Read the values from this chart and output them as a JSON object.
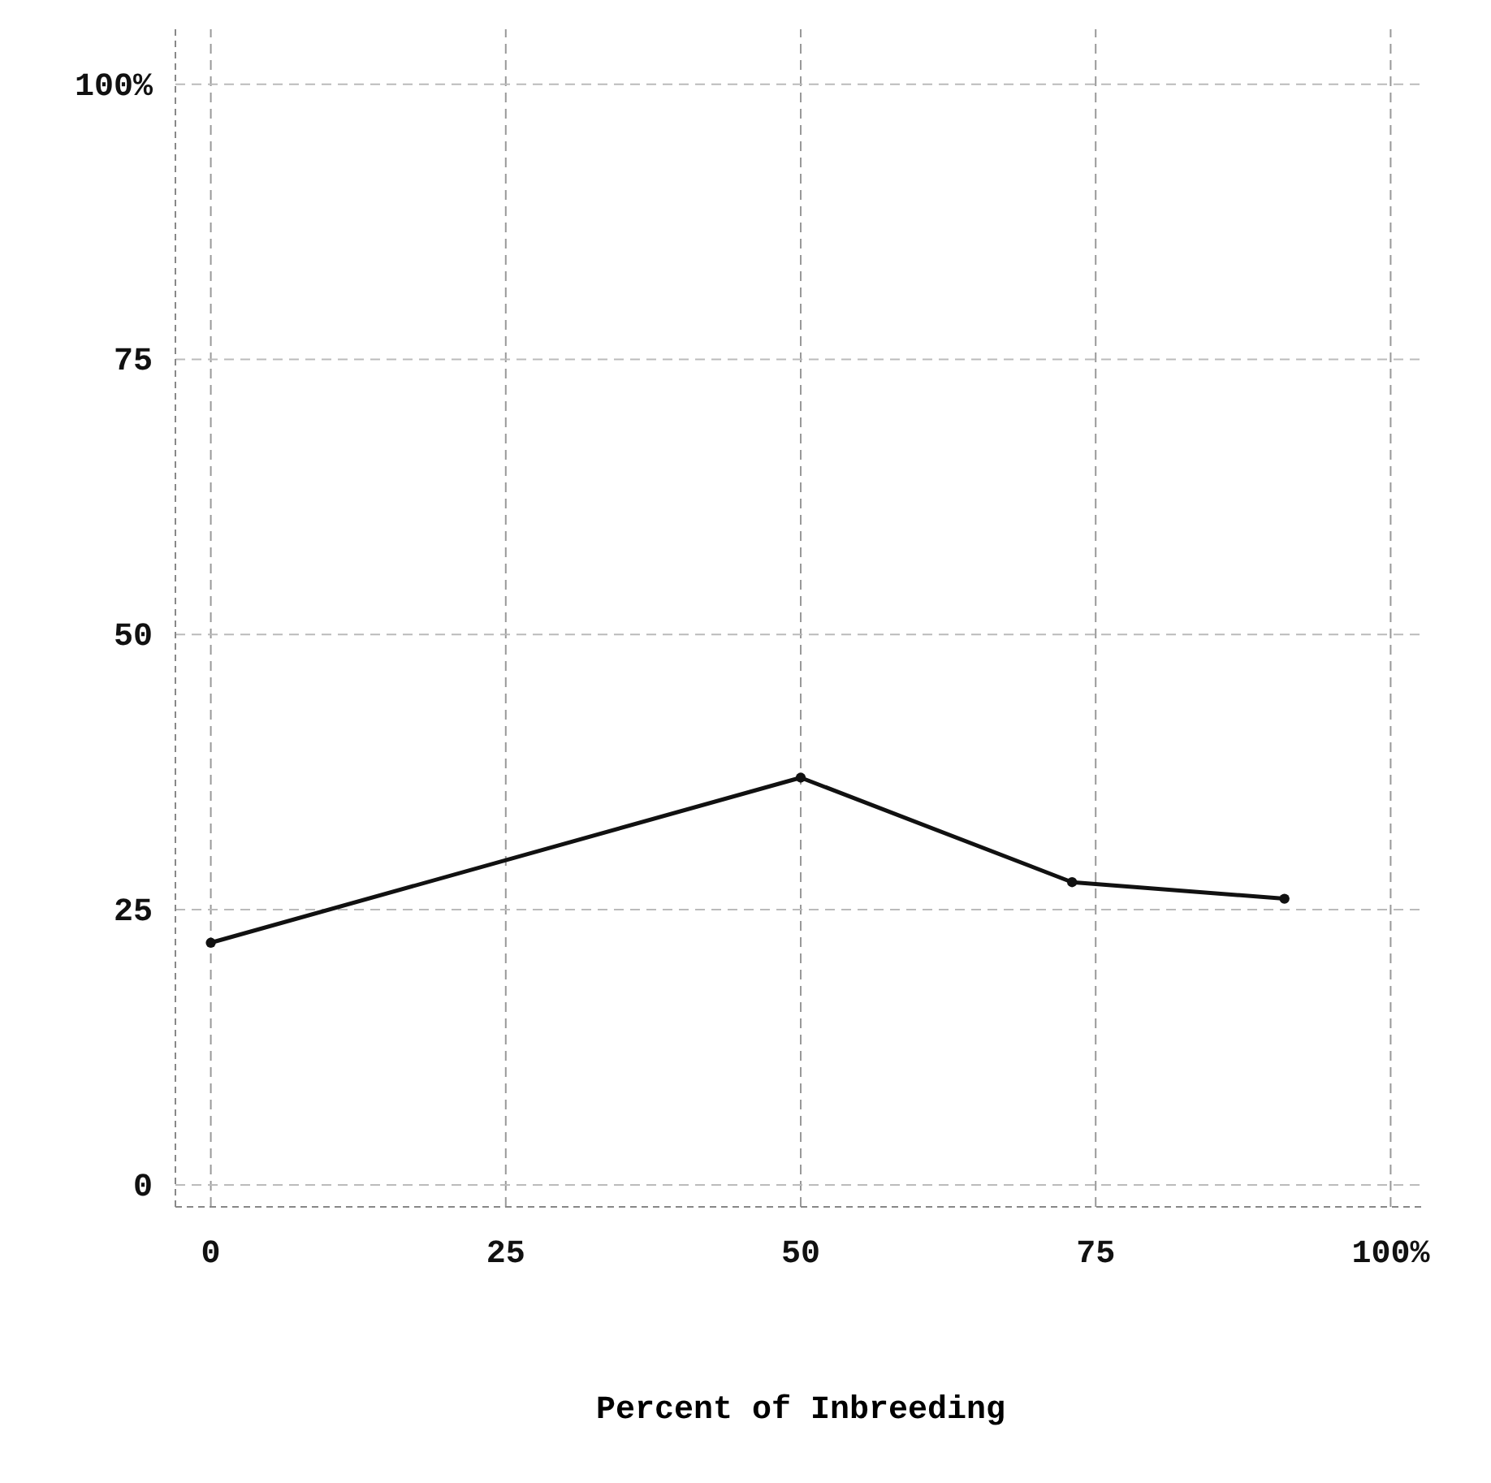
{
  "chart_data": {
    "type": "line",
    "xlabel": "Percent of Inbreeding",
    "x": [
      0,
      50,
      73,
      91
    ],
    "series": [
      {
        "color": "#111111",
        "values": [
          22,
          37,
          27.5,
          26
        ]
      }
    ],
    "xlim": [
      -3,
      103
    ],
    "ylim": [
      -2,
      105
    ],
    "xticks": [
      0,
      25,
      50,
      75,
      {
        "value": 100,
        "label": "100%"
      }
    ],
    "yticks": [
      0,
      25,
      50,
      75,
      {
        "value": 100,
        "label": "100%"
      }
    ],
    "grid": true,
    "marker": "circle",
    "line_style": "solid"
  }
}
